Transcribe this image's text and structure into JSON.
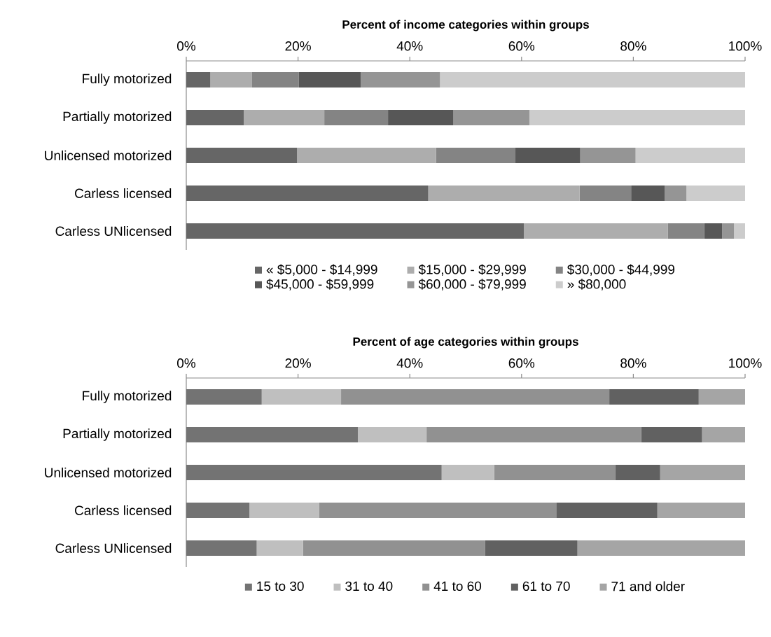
{
  "chart_data": [
    {
      "type": "bar",
      "orientation": "horizontal",
      "stacked": true,
      "title": "Percent of income categories within groups",
      "categories": [
        "Fully motorized",
        "Partially motorized",
        "Unlicensed motorized",
        "Carless licensed",
        "Carless UNlicensed"
      ],
      "series": [
        {
          "name": "« $5,000 - $14,999",
          "color": "#666666",
          "values": [
            4.3,
            10.3,
            19.8,
            43.3,
            60.4
          ]
        },
        {
          "name": "$15,000 - $29,999",
          "color": "#adadad",
          "values": [
            7.4,
            14.4,
            24.9,
            27.1,
            25.8
          ]
        },
        {
          "name": "$30,000 - $44,999",
          "color": "#848484",
          "values": [
            8.4,
            11.4,
            14.2,
            9.2,
            6.5
          ]
        },
        {
          "name": "$45,000 - $59,999",
          "color": "#575757",
          "values": [
            11.1,
            11.7,
            11.6,
            6.0,
            3.2
          ]
        },
        {
          "name": "$60,000 - $79,999",
          "color": "#959595",
          "values": [
            14.2,
            13.6,
            9.9,
            3.9,
            2.1
          ]
        },
        {
          "name": "» $80,000",
          "color": "#cccccc",
          "values": [
            54.6,
            38.6,
            19.6,
            10.5,
            2.0
          ]
        }
      ],
      "xlim": [
        0,
        100
      ],
      "xticks": [
        {
          "value": 0,
          "label": "0%"
        },
        {
          "value": 20,
          "label": "20%"
        },
        {
          "value": 40,
          "label": "40%"
        },
        {
          "value": 60,
          "label": "60%"
        },
        {
          "value": 80,
          "label": "80%"
        },
        {
          "value": 100,
          "label": "100%"
        }
      ],
      "legend": "bottom"
    },
    {
      "type": "bar",
      "orientation": "horizontal",
      "stacked": true,
      "title": "Percent of age categories within groups",
      "categories": [
        "Fully motorized",
        "Partially motorized",
        "Unlicensed motorized",
        "Carless licensed",
        "Carless UNlicensed"
      ],
      "series": [
        {
          "name": "15 to 30",
          "color": "#737373",
          "values": [
            13.5,
            30.7,
            45.7,
            11.3,
            12.6
          ]
        },
        {
          "name": "31 to 40",
          "color": "#bfbfbf",
          "values": [
            14.2,
            12.3,
            9.4,
            12.5,
            8.3
          ]
        },
        {
          "name": "41 to 60",
          "color": "#919191",
          "values": [
            48.0,
            38.4,
            21.7,
            42.4,
            32.6
          ]
        },
        {
          "name": "61 to 70",
          "color": "#616161",
          "values": [
            16.0,
            10.9,
            8.0,
            18.1,
            16.5
          ]
        },
        {
          "name": "71  and older",
          "color": "#a5a5a5",
          "values": [
            8.3,
            7.7,
            15.2,
            15.7,
            30.0
          ]
        }
      ],
      "xlim": [
        0,
        100
      ],
      "xticks": [
        {
          "value": 0,
          "label": "0%"
        },
        {
          "value": 20,
          "label": "20%"
        },
        {
          "value": 40,
          "label": "40%"
        },
        {
          "value": 60,
          "label": "60%"
        },
        {
          "value": 80,
          "label": "80%"
        },
        {
          "value": 100,
          "label": "100%"
        }
      ],
      "legend": "bottom"
    }
  ]
}
